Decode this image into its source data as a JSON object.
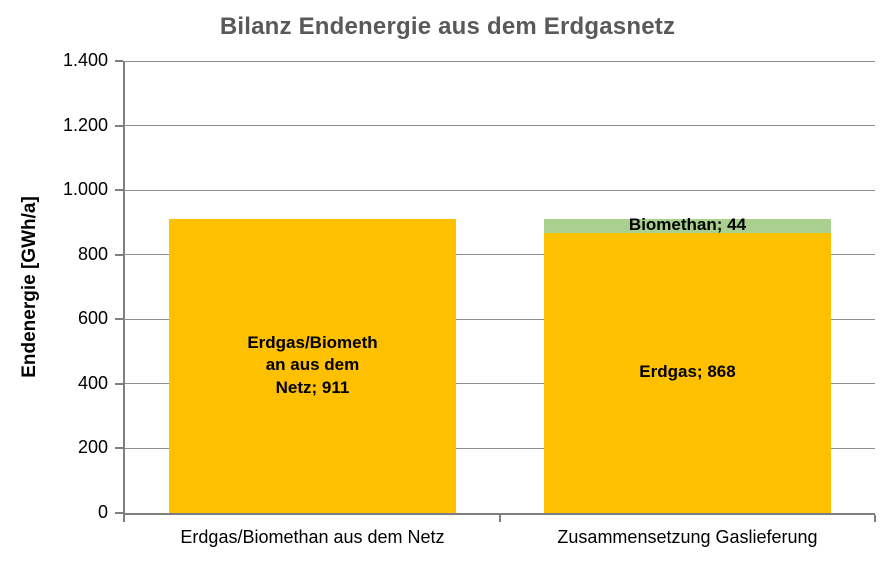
{
  "chart_data": {
    "type": "bar",
    "stacked": true,
    "title": "Bilanz Endenergie aus dem Erdgasnetz",
    "ylabel": "Endenergie [GWh/a]",
    "xlabel": "",
    "ylim": [
      0,
      1400
    ],
    "ytick_step": 200,
    "yticks": [
      0,
      200,
      400,
      600,
      800,
      1000,
      1200,
      1400
    ],
    "ytick_labels": [
      "0",
      "200",
      "400",
      "600",
      "800",
      "1.000",
      "1.200",
      "1.400"
    ],
    "grid": "horizontal",
    "legend": "none",
    "categories": [
      "Erdgas/Biomethan aus dem Netz",
      "Zusammensetzung Gaslieferung"
    ],
    "bars": [
      {
        "category": "Erdgas/Biomethan aus dem Netz",
        "segments": [
          {
            "name": "Erdgas/Biomethan aus dem Netz",
            "value": 911,
            "color": "#FFC000",
            "data_label": "Erdgas/Biomethan aus dem Netz; 911",
            "label_lines": [
              "Erdgas/Biometh",
              "an aus dem",
              "Netz; 911"
            ]
          }
        ]
      },
      {
        "category": "Zusammensetzung Gaslieferung",
        "segments": [
          {
            "name": "Erdgas",
            "value": 868,
            "color": "#FFC000",
            "data_label": "Erdgas; 868",
            "label_lines": [
              "Erdgas; 868"
            ]
          },
          {
            "name": "Biomethan",
            "value": 44,
            "color": "#A9D08E",
            "data_label": "Biomethan; 44",
            "label_lines": [
              "Biomethan; 44"
            ]
          }
        ]
      }
    ],
    "colors": {
      "erdgas": "#FFC000",
      "biomethan": "#A9D08E",
      "title_text": "#595959",
      "axis_line": "#7F7F7F",
      "gridline": "#8F8F8F",
      "label_text": "#000000",
      "background": "#FFFFFF"
    }
  }
}
